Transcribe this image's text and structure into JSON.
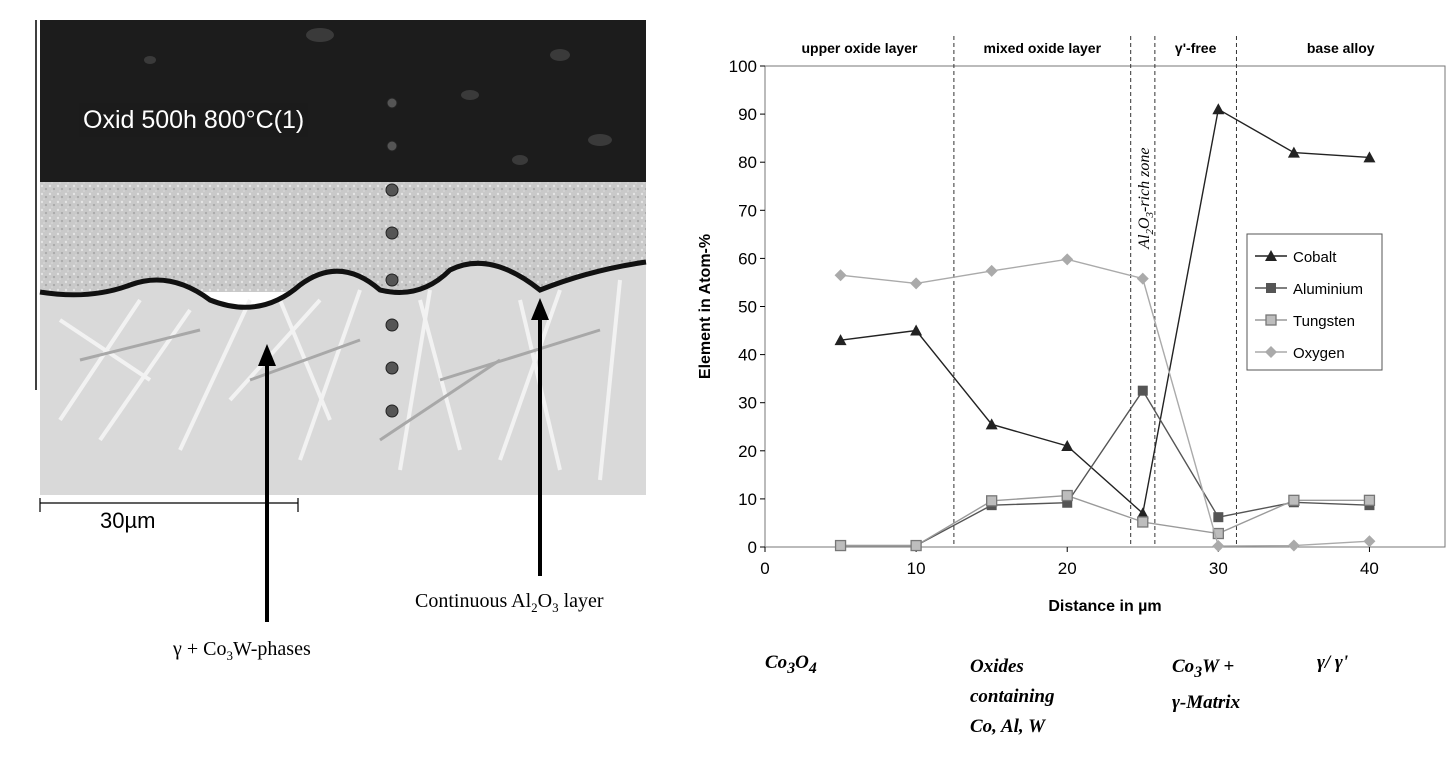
{
  "micrograph": {
    "label": "Oxid 500h 800°C(1)",
    "scale_bar": "30µm",
    "annotations": {
      "phases_prefix": "γ + Co",
      "phases_sub": "3",
      "phases_suffix": "W-phases",
      "layer_prefix": "Continuous Al",
      "layer_sub1": "2",
      "layer_mid": "O",
      "layer_sub2": "3",
      "layer_suffix": " layer"
    }
  },
  "chart_data": {
    "type": "line",
    "xlabel": "Distance in µm",
    "ylabel": "Element in Atom-%",
    "xlim": [
      0,
      45
    ],
    "ylim": [
      0,
      100
    ],
    "x_ticks": [
      0,
      10,
      20,
      30,
      40
    ],
    "y_ticks": [
      0,
      10,
      20,
      30,
      40,
      50,
      60,
      70,
      80,
      90,
      100
    ],
    "x": [
      5,
      10,
      15,
      20,
      25,
      30,
      35,
      40
    ],
    "series": [
      {
        "name": "Cobalt",
        "marker": "triangle",
        "color": "#222222",
        "values": [
          43,
          45,
          25.5,
          21,
          7,
          91,
          82,
          81
        ]
      },
      {
        "name": "Aluminium",
        "marker": "square",
        "color": "#555555",
        "values": [
          0.3,
          0.3,
          8.7,
          9.2,
          32.5,
          6.2,
          9.3,
          8.7
        ]
      },
      {
        "name": "Tungsten",
        "marker": "square-open",
        "color": "#9a9a9a",
        "values": [
          0.3,
          0.3,
          9.6,
          10.7,
          5.2,
          2.8,
          9.7,
          9.7
        ]
      },
      {
        "name": "Oxygen",
        "marker": "diamond",
        "color": "#aaaaaa",
        "values": [
          56.5,
          54.8,
          57.4,
          59.8,
          55.8,
          0.2,
          0.3,
          1.2
        ]
      }
    ],
    "legend_position": "right",
    "region_dividers": [
      12.5,
      24.2,
      25.8,
      31.2
    ],
    "regions": [
      "upper oxide layer",
      "mixed oxide layer",
      "γ'-free",
      "base alloy"
    ],
    "vertical_zone_label_prefix": "Al",
    "vertical_zone_label_sub1": "2",
    "vertical_zone_label_mid": "O",
    "vertical_zone_label_sub2": "3",
    "vertical_zone_label_suffix": "-rich zone"
  },
  "phase_labels": {
    "co3o4_a": "Co",
    "co3o4_b": "3",
    "co3o4_c": "O",
    "co3o4_d": "4",
    "oxides_line1": "Oxides",
    "oxides_line2": "containing",
    "oxides_line3": "Co, Al, W",
    "co3w_a": "Co",
    "co3w_b": "3",
    "co3w_c": "W +",
    "co3w_line2": "γ-Matrix",
    "gamma": "γ/ γ'"
  }
}
